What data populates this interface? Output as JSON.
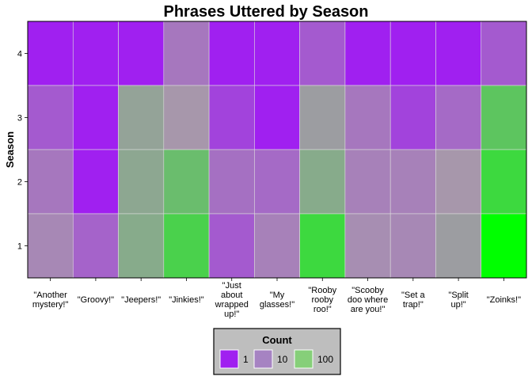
{
  "chart_data": {
    "type": "heatmap",
    "title": "Phrases Uttered by Season",
    "xlabel": "",
    "ylabel": "Season",
    "x_categories": [
      "\"Another mystery!\"",
      "\"Groovy!\"",
      "\"Jeepers!\"",
      "\"Jinkies!\"",
      "\"Just about wrapped up!\"",
      "\"My glasses!\"",
      "\"Rooby rooby roo!\"",
      "\"Scooby doo where are you!\"",
      "\"Set a trap!\"",
      "\"Split up!\"",
      "\"Zoinks!\""
    ],
    "x_tick_lines": [
      [
        "\"Another",
        "mystery!\""
      ],
      [
        "\"Groovy!\""
      ],
      [
        "\"Jeepers!\""
      ],
      [
        "\"Jinkies!\""
      ],
      [
        "\"Just",
        "about",
        "wrapped",
        "up!\""
      ],
      [
        "\"My",
        "glasses!\""
      ],
      [
        "\"Rooby",
        "rooby",
        "roo!\""
      ],
      [
        "\"Scooby",
        "doo where",
        "are you!\""
      ],
      [
        "\"Set a",
        "trap!\""
      ],
      [
        "\"Split",
        "up!\""
      ],
      [
        "\"Zoinks!\""
      ]
    ],
    "y_categories": [
      "1",
      "2",
      "3",
      "4"
    ],
    "color_scale": "log10",
    "cells": [
      {
        "season": "4",
        "values": [
          1,
          1,
          1,
          15,
          1,
          1,
          6,
          1,
          1,
          1,
          6
        ]
      },
      {
        "season": "3",
        "values": [
          6,
          1,
          60,
          40,
          3,
          1,
          50,
          15,
          3,
          10,
          200
        ]
      },
      {
        "season": "2",
        "values": [
          15,
          1,
          70,
          150,
          12,
          10,
          80,
          20,
          20,
          40,
          400
        ]
      },
      {
        "season": "1",
        "values": [
          25,
          8,
          80,
          300,
          6,
          20,
          400,
          30,
          25,
          50,
          1500
        ]
      }
    ],
    "legend": {
      "title": "Count",
      "position": "bottom",
      "entries": [
        {
          "label": "1",
          "color": "#a020f0"
        },
        {
          "label": "10",
          "color": "#a683c2"
        },
        {
          "label": "100",
          "color": "#86cf79"
        }
      ]
    },
    "colors": {
      "low": "#a020f0",
      "mid": "#a896ad",
      "high": "#00ff00",
      "panel_border": "#000000",
      "grid": "#dddddd"
    }
  }
}
